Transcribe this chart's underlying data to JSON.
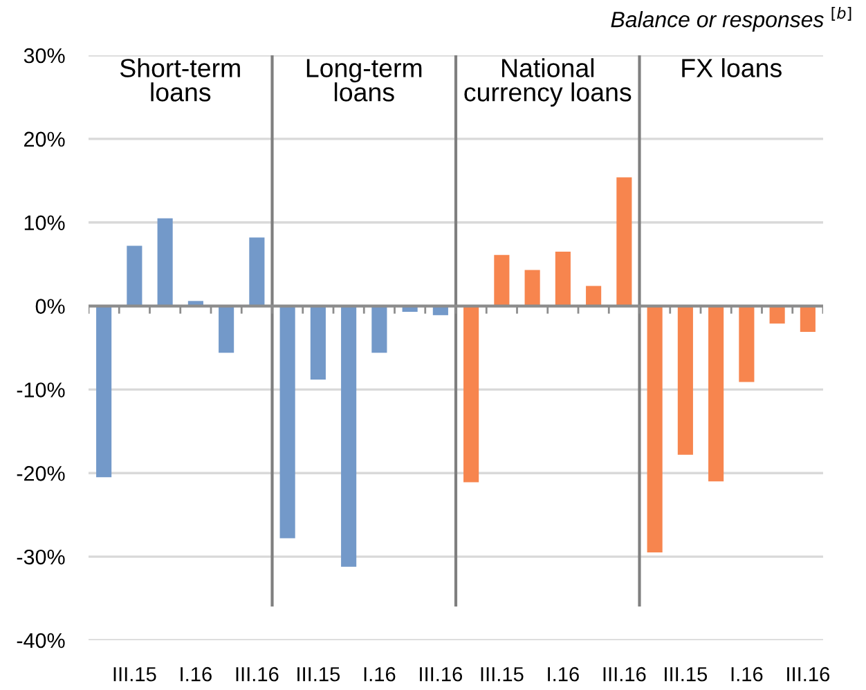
{
  "chart_data": {
    "type": "bar",
    "categories": [
      null,
      "III.15",
      null,
      "I.16",
      null,
      "III.16",
      null,
      "III.15",
      null,
      "I.16",
      null,
      "III.16",
      null,
      "III.15",
      null,
      "I.16",
      null,
      "III.16",
      null,
      "III.15",
      null,
      "I.16",
      null,
      "III.16"
    ],
    "values": [
      -20.5,
      7.2,
      10.5,
      0.6,
      -5.6,
      8.2,
      -27.8,
      -8.8,
      -31.2,
      -5.6,
      -0.7,
      -1.1,
      -21.1,
      6.1,
      4.3,
      6.5,
      2.4,
      15.4,
      -29.5,
      -17.8,
      -21.0,
      -9.1,
      -2.1,
      -3.1
    ],
    "colors": [
      "#7399c9",
      "#7399c9",
      "#7399c9",
      "#7399c9",
      "#7399c9",
      "#7399c9",
      "#7399c9",
      "#7399c9",
      "#7399c9",
      "#7399c9",
      "#7399c9",
      "#7399c9",
      "#f7854e",
      "#f7854e",
      "#f7854e",
      "#f7854e",
      "#f7854e",
      "#f7854e",
      "#f7854e",
      "#f7854e",
      "#f7854e",
      "#f7854e",
      "#f7854e",
      "#f7854e"
    ],
    "ylim": [
      -40,
      30
    ],
    "yticks": [
      {
        "value": -40,
        "label": "-40%"
      },
      {
        "value": -30,
        "label": "-30%"
      },
      {
        "value": -20,
        "label": "-20%"
      },
      {
        "value": -10,
        "label": "-10%"
      },
      {
        "value": 0,
        "label": "0%"
      },
      {
        "value": 10,
        "label": "10%"
      },
      {
        "value": 20,
        "label": "20%"
      },
      {
        "value": 30,
        "label": "30%"
      }
    ],
    "ylabel": "Balance or responses $^{[b]}$",
    "annotations": [
      "Short-term\nloans",
      "Long-term\nloans",
      "National\ncurrency loans",
      "FX loans"
    ],
    "grid": "y"
  }
}
